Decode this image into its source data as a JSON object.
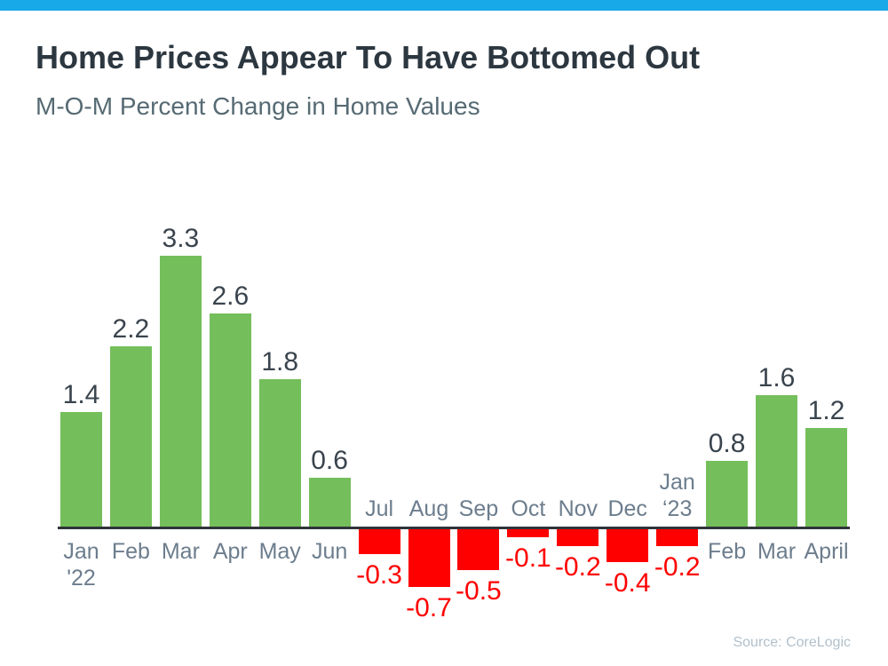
{
  "chart_data": {
    "type": "bar",
    "title": "Home Prices Appear To Have Bottomed Out",
    "subtitle": "M-O-M Percent Change in Home Values",
    "source": "Source: CoreLogic",
    "categories": [
      "Jan\n'22",
      "Feb",
      "Mar",
      "Apr",
      "May",
      "Jun",
      "Jul",
      "Aug",
      "Sep",
      "Oct",
      "Nov",
      "Dec",
      "Jan\n‘23",
      "Feb",
      "Mar",
      "April"
    ],
    "values": [
      1.4,
      2.2,
      3.3,
      2.6,
      1.8,
      0.6,
      -0.3,
      -0.7,
      -0.5,
      -0.1,
      -0.2,
      -0.4,
      -0.2,
      0.8,
      1.6,
      1.2
    ],
    "value_labels": [
      "1.4",
      "2.2",
      "3.3",
      "2.6",
      "1.8",
      "0.6",
      "-0.3",
      "-0.7",
      "-0.5",
      "-0.1",
      "-0.2",
      "-0.4",
      "-0.2",
      "0.8",
      "1.6",
      "1.2"
    ],
    "xlabel": "",
    "ylabel": "",
    "ylim": [
      -0.9,
      3.6
    ],
    "grid": false,
    "legend": false,
    "value_labels_visible": true,
    "colors": {
      "positive": "#74BF5B",
      "negative": "#FF0000"
    }
  },
  "theme": {
    "accent_bar_color": "#18A9E8",
    "background": "#FFFFFF",
    "title_color": "#2C3740",
    "subtitle_color": "#566A73",
    "axis_line_color": "#2F3439",
    "category_label_color": "#6C7D8D",
    "value_label_color": "#3A444E",
    "negative_value_label_color": "#FF0000",
    "source_color": "#B2C0CA"
  }
}
